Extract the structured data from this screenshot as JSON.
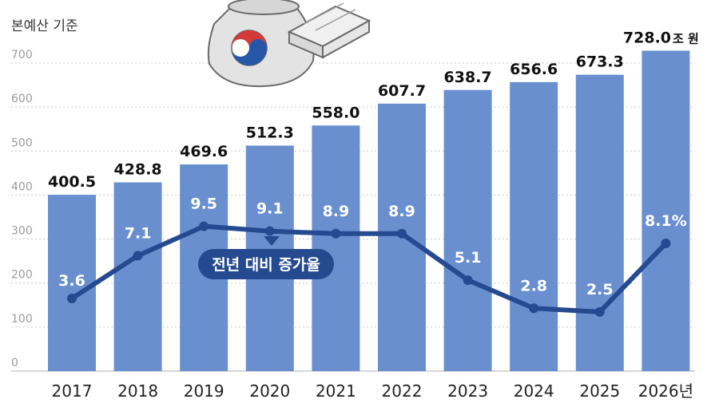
{
  "header": {
    "title_fragment": "",
    "unit_note": "본예산 기준"
  },
  "legend": {
    "line_label": "전년 대비 증가율"
  },
  "chart_data": {
    "type": "bar",
    "categories": [
      "2017",
      "2018",
      "2019",
      "2020",
      "2021",
      "2022",
      "2023",
      "2024",
      "2025",
      "2026년"
    ],
    "values": [
      400.5,
      428.8,
      469.6,
      512.3,
      558.0,
      607.7,
      638.7,
      656.6,
      673.3,
      728.0
    ],
    "value_labels": [
      "400.5",
      "428.8",
      "469.6",
      "512.3",
      "558.0",
      "607.7",
      "638.7",
      "656.6",
      "673.3",
      "728.0"
    ],
    "last_value_unit": "조 원",
    "yticks": [
      0,
      100,
      200,
      300,
      400,
      500,
      600,
      700
    ],
    "ylim": [
      0,
      750
    ],
    "grid": true,
    "series": [
      {
        "name": "전년 대비 증가율",
        "type": "line",
        "values": [
          3.6,
          7.1,
          9.5,
          9.1,
          8.9,
          8.9,
          5.1,
          2.8,
          2.5,
          8.1
        ],
        "labels": [
          "3.6",
          "7.1",
          "9.5",
          "9.1",
          "8.9",
          "8.9",
          "5.1",
          "2.8",
          "2.5",
          "8.1%"
        ]
      }
    ],
    "colors": {
      "bar": "#6a8fcf",
      "line": "#254a8f",
      "grid": "#c8c8c8",
      "callout": "#254a8f"
    }
  }
}
